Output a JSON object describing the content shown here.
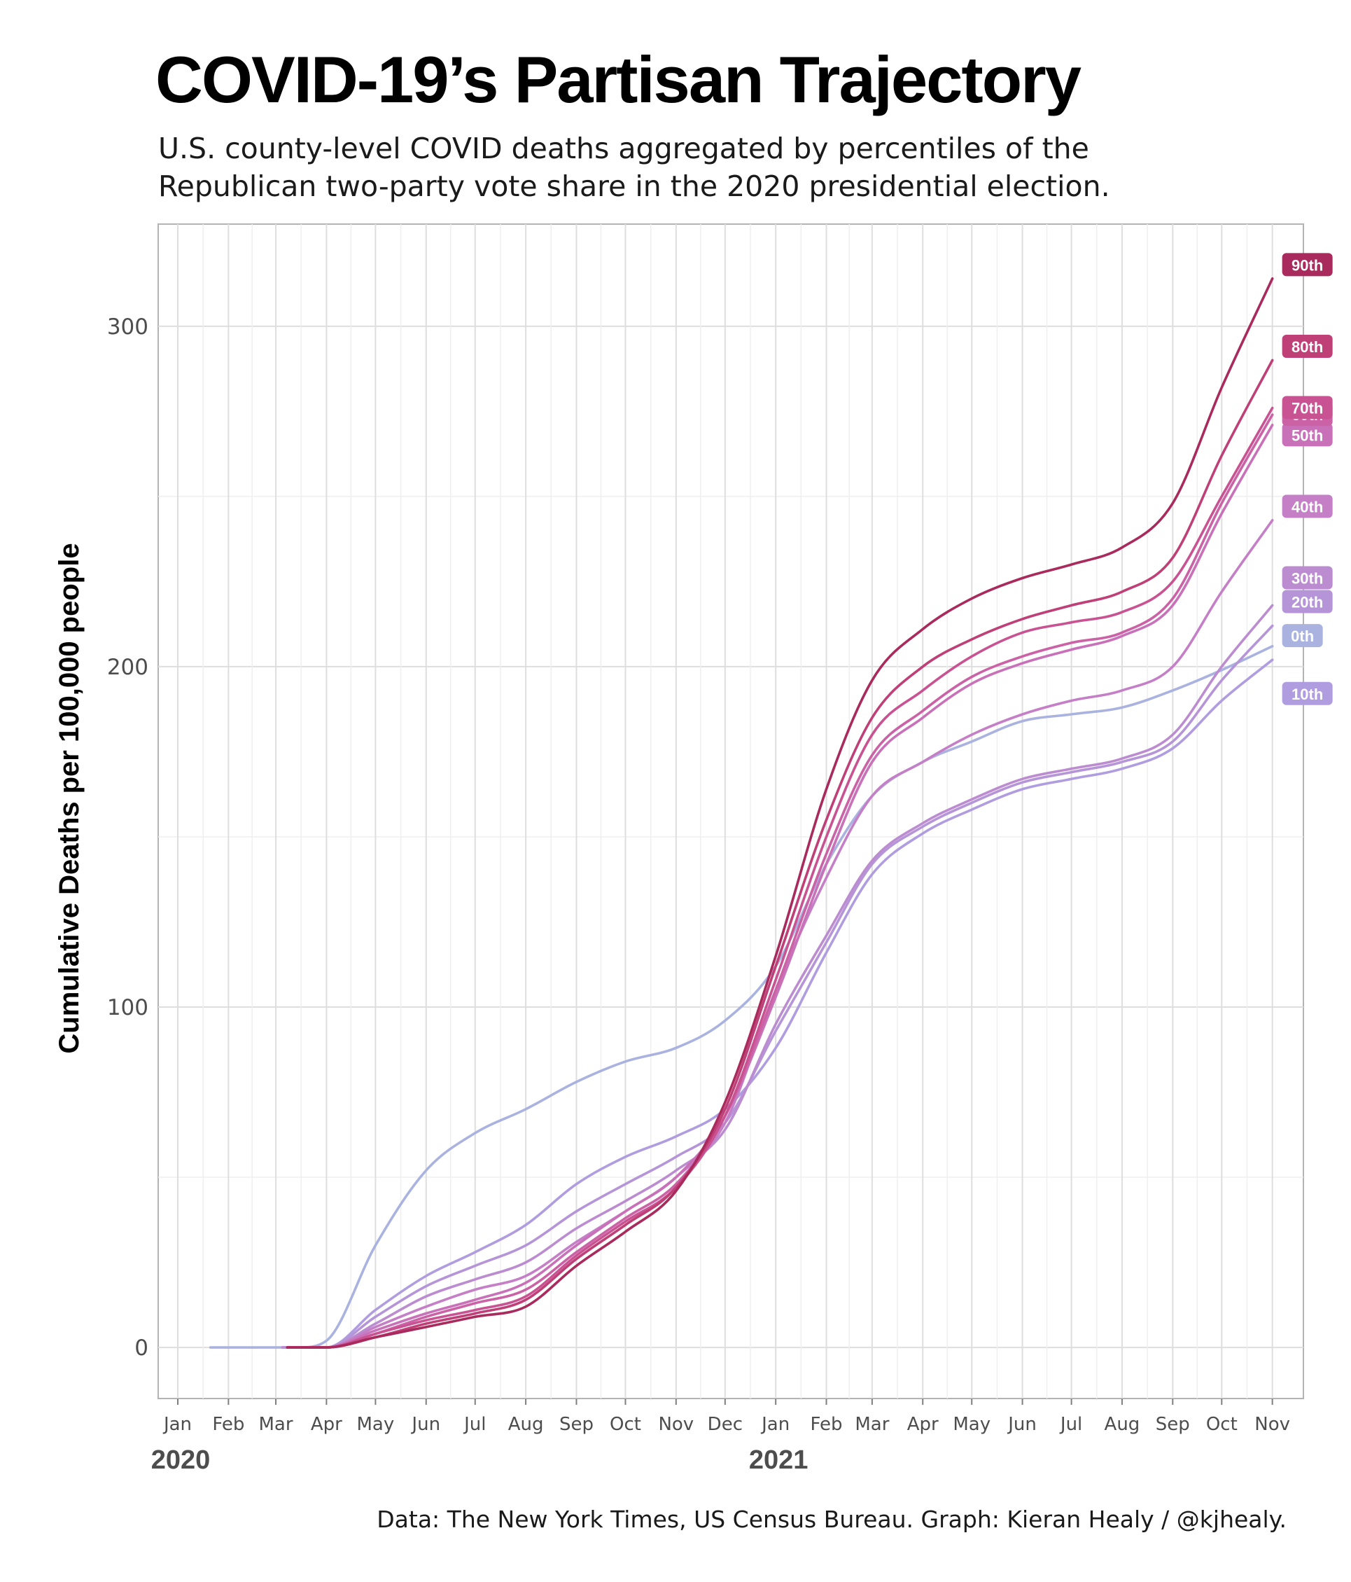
{
  "title": "COVID-19’s Partisan Trajectory",
  "subtitle": "U.S. county-level COVID deaths aggregated by percentiles of the Republican two-party vote share in the 2020 presidential election.",
  "caption": "Data: The New York Times, US Census Bureau. Graph: Kieran Healy / @kjhealy.",
  "chart_data": {
    "type": "line",
    "ylabel": "Cumulative Deaths per 100,000 people",
    "xlabel": "",
    "ylim": [
      -15,
      330
    ],
    "xlim": [
      "2019-12-20",
      "2021-11-20"
    ],
    "y_ticks": [
      0,
      100,
      200,
      300
    ],
    "x_ticks": [
      {
        "date": "2020-01-01",
        "label": "Jan"
      },
      {
        "date": "2020-02-01",
        "label": "Feb"
      },
      {
        "date": "2020-03-01",
        "label": "Mar"
      },
      {
        "date": "2020-04-01",
        "label": "Apr"
      },
      {
        "date": "2020-05-01",
        "label": "May"
      },
      {
        "date": "2020-06-01",
        "label": "Jun"
      },
      {
        "date": "2020-07-01",
        "label": "Jul"
      },
      {
        "date": "2020-08-01",
        "label": "Aug"
      },
      {
        "date": "2020-09-01",
        "label": "Sep"
      },
      {
        "date": "2020-10-01",
        "label": "Oct"
      },
      {
        "date": "2020-11-01",
        "label": "Nov"
      },
      {
        "date": "2020-12-01",
        "label": "Dec"
      },
      {
        "date": "2021-01-01",
        "label": "Jan"
      },
      {
        "date": "2021-02-01",
        "label": "Feb"
      },
      {
        "date": "2021-03-01",
        "label": "Mar"
      },
      {
        "date": "2021-04-01",
        "label": "Apr"
      },
      {
        "date": "2021-05-01",
        "label": "May"
      },
      {
        "date": "2021-06-01",
        "label": "Jun"
      },
      {
        "date": "2021-07-01",
        "label": "Jul"
      },
      {
        "date": "2021-08-01",
        "label": "Aug"
      },
      {
        "date": "2021-09-01",
        "label": "Sep"
      },
      {
        "date": "2021-10-01",
        "label": "Oct"
      },
      {
        "date": "2021-11-01",
        "label": "Nov"
      }
    ],
    "year_labels": [
      {
        "date": "2020-01-01",
        "label": "2020"
      },
      {
        "date": "2021-01-01",
        "label": "2021"
      }
    ],
    "grid": true,
    "series": [
      {
        "name": "0th",
        "color": "#aab3e0",
        "points": [
          [
            "2020-01-21",
            0
          ],
          [
            "2020-03-15",
            0
          ],
          [
            "2020-04-01",
            2
          ],
          [
            "2020-05-01",
            30
          ],
          [
            "2020-06-01",
            52
          ],
          [
            "2020-07-01",
            63
          ],
          [
            "2020-08-01",
            70
          ],
          [
            "2020-09-01",
            78
          ],
          [
            "2020-10-01",
            84
          ],
          [
            "2020-11-01",
            88
          ],
          [
            "2020-12-01",
            96
          ],
          [
            "2021-01-01",
            112
          ],
          [
            "2021-02-01",
            142
          ],
          [
            "2021-03-01",
            162
          ],
          [
            "2021-04-01",
            172
          ],
          [
            "2021-05-01",
            178
          ],
          [
            "2021-06-01",
            184
          ],
          [
            "2021-07-01",
            186
          ],
          [
            "2021-08-01",
            188
          ],
          [
            "2021-09-01",
            193
          ],
          [
            "2021-10-01",
            199
          ],
          [
            "2021-11-01",
            206
          ]
        ]
      },
      {
        "name": "10th",
        "color": "#b09de0",
        "points": [
          [
            "2020-03-05",
            0
          ],
          [
            "2020-04-01",
            0
          ],
          [
            "2020-05-01",
            11
          ],
          [
            "2020-06-01",
            21
          ],
          [
            "2020-07-01",
            28
          ],
          [
            "2020-08-01",
            36
          ],
          [
            "2020-09-01",
            48
          ],
          [
            "2020-10-01",
            56
          ],
          [
            "2020-11-01",
            62
          ],
          [
            "2020-12-01",
            70
          ],
          [
            "2021-01-01",
            88
          ],
          [
            "2021-02-01",
            116
          ],
          [
            "2021-03-01",
            139
          ],
          [
            "2021-04-01",
            151
          ],
          [
            "2021-05-01",
            158
          ],
          [
            "2021-06-01",
            164
          ],
          [
            "2021-07-01",
            167
          ],
          [
            "2021-08-01",
            170
          ],
          [
            "2021-09-01",
            176
          ],
          [
            "2021-10-01",
            190
          ],
          [
            "2021-11-01",
            202
          ]
        ]
      },
      {
        "name": "20th",
        "color": "#b595d8",
        "points": [
          [
            "2020-03-05",
            0
          ],
          [
            "2020-04-01",
            0
          ],
          [
            "2020-05-01",
            9
          ],
          [
            "2020-06-01",
            18
          ],
          [
            "2020-07-01",
            24
          ],
          [
            "2020-08-01",
            30
          ],
          [
            "2020-09-01",
            40
          ],
          [
            "2020-10-01",
            48
          ],
          [
            "2020-11-01",
            56
          ],
          [
            "2020-12-01",
            66
          ],
          [
            "2021-01-01",
            93
          ],
          [
            "2021-02-01",
            119
          ],
          [
            "2021-03-01",
            142
          ],
          [
            "2021-04-01",
            153
          ],
          [
            "2021-05-01",
            160
          ],
          [
            "2021-06-01",
            166
          ],
          [
            "2021-07-01",
            169
          ],
          [
            "2021-08-01",
            172
          ],
          [
            "2021-09-01",
            178
          ],
          [
            "2021-10-01",
            196
          ],
          [
            "2021-11-01",
            212
          ]
        ]
      },
      {
        "name": "30th",
        "color": "#bc8cd0",
        "points": [
          [
            "2020-03-05",
            0
          ],
          [
            "2020-04-01",
            0
          ],
          [
            "2020-05-01",
            7
          ],
          [
            "2020-06-01",
            15
          ],
          [
            "2020-07-01",
            20
          ],
          [
            "2020-08-01",
            25
          ],
          [
            "2020-09-01",
            35
          ],
          [
            "2020-10-01",
            43
          ],
          [
            "2020-11-01",
            52
          ],
          [
            "2020-12-01",
            64
          ],
          [
            "2021-01-01",
            95
          ],
          [
            "2021-02-01",
            121
          ],
          [
            "2021-03-01",
            143
          ],
          [
            "2021-04-01",
            154
          ],
          [
            "2021-05-01",
            161
          ],
          [
            "2021-06-01",
            167
          ],
          [
            "2021-07-01",
            170
          ],
          [
            "2021-08-01",
            173
          ],
          [
            "2021-09-01",
            180
          ],
          [
            "2021-10-01",
            200
          ],
          [
            "2021-11-01",
            218
          ]
        ]
      },
      {
        "name": "40th",
        "color": "#c47fc7",
        "points": [
          [
            "2020-03-08",
            0
          ],
          [
            "2020-04-01",
            0
          ],
          [
            "2020-05-01",
            6
          ],
          [
            "2020-06-01",
            12
          ],
          [
            "2020-07-01",
            17
          ],
          [
            "2020-08-01",
            21
          ],
          [
            "2020-09-01",
            31
          ],
          [
            "2020-10-01",
            40
          ],
          [
            "2020-11-01",
            50
          ],
          [
            "2020-12-01",
            66
          ],
          [
            "2021-01-01",
            105
          ],
          [
            "2021-02-01",
            138
          ],
          [
            "2021-03-01",
            162
          ],
          [
            "2021-04-01",
            172
          ],
          [
            "2021-05-01",
            180
          ],
          [
            "2021-06-01",
            186
          ],
          [
            "2021-07-01",
            190
          ],
          [
            "2021-08-01",
            193
          ],
          [
            "2021-09-01",
            200
          ],
          [
            "2021-10-01",
            222
          ],
          [
            "2021-11-01",
            243
          ]
        ]
      },
      {
        "name": "50th",
        "color": "#c971b8",
        "points": [
          [
            "2020-03-08",
            0
          ],
          [
            "2020-04-01",
            0
          ],
          [
            "2020-05-01",
            5
          ],
          [
            "2020-06-01",
            10
          ],
          [
            "2020-07-01",
            14
          ],
          [
            "2020-08-01",
            19
          ],
          [
            "2020-09-01",
            30
          ],
          [
            "2020-10-01",
            40
          ],
          [
            "2020-11-01",
            50
          ],
          [
            "2020-12-01",
            68
          ],
          [
            "2021-01-01",
            103
          ],
          [
            "2021-02-01",
            142
          ],
          [
            "2021-03-01",
            172
          ],
          [
            "2021-04-01",
            185
          ],
          [
            "2021-05-01",
            195
          ],
          [
            "2021-06-01",
            201
          ],
          [
            "2021-07-01",
            205
          ],
          [
            "2021-08-01",
            209
          ],
          [
            "2021-09-01",
            218
          ],
          [
            "2021-10-01",
            245
          ],
          [
            "2021-11-01",
            271
          ]
        ]
      },
      {
        "name": "60th",
        "color": "#cb62a6",
        "points": [
          [
            "2020-03-08",
            0
          ],
          [
            "2020-04-01",
            0
          ],
          [
            "2020-05-01",
            4
          ],
          [
            "2020-06-01",
            9
          ],
          [
            "2020-07-01",
            13
          ],
          [
            "2020-08-01",
            17
          ],
          [
            "2020-09-01",
            28
          ],
          [
            "2020-10-01",
            38
          ],
          [
            "2020-11-01",
            48
          ],
          [
            "2020-12-01",
            68
          ],
          [
            "2021-01-01",
            105
          ],
          [
            "2021-02-01",
            145
          ],
          [
            "2021-03-01",
            174
          ],
          [
            "2021-04-01",
            187
          ],
          [
            "2021-05-01",
            197
          ],
          [
            "2021-06-01",
            203
          ],
          [
            "2021-07-01",
            207
          ],
          [
            "2021-08-01",
            210
          ],
          [
            "2021-09-01",
            220
          ],
          [
            "2021-10-01",
            248
          ],
          [
            "2021-11-01",
            274
          ]
        ]
      },
      {
        "name": "70th",
        "color": "#c95392",
        "points": [
          [
            "2020-03-08",
            0
          ],
          [
            "2020-04-01",
            0
          ],
          [
            "2020-05-01",
            4
          ],
          [
            "2020-06-01",
            8
          ],
          [
            "2020-07-01",
            11
          ],
          [
            "2020-08-01",
            15
          ],
          [
            "2020-09-01",
            27
          ],
          [
            "2020-10-01",
            37
          ],
          [
            "2020-11-01",
            47
          ],
          [
            "2020-12-01",
            68
          ],
          [
            "2021-01-01",
            108
          ],
          [
            "2021-02-01",
            150
          ],
          [
            "2021-03-01",
            180
          ],
          [
            "2021-04-01",
            193
          ],
          [
            "2021-05-01",
            203
          ],
          [
            "2021-06-01",
            210
          ],
          [
            "2021-07-01",
            213
          ],
          [
            "2021-08-01",
            216
          ],
          [
            "2021-09-01",
            225
          ],
          [
            "2021-10-01",
            250
          ],
          [
            "2021-11-01",
            276
          ]
        ]
      },
      {
        "name": "80th",
        "color": "#bf3f77",
        "points": [
          [
            "2020-03-08",
            0
          ],
          [
            "2020-04-01",
            0
          ],
          [
            "2020-05-01",
            3
          ],
          [
            "2020-06-01",
            7
          ],
          [
            "2020-07-01",
            10
          ],
          [
            "2020-08-01",
            14
          ],
          [
            "2020-09-01",
            26
          ],
          [
            "2020-10-01",
            36
          ],
          [
            "2020-11-01",
            47
          ],
          [
            "2020-12-01",
            70
          ],
          [
            "2021-01-01",
            112
          ],
          [
            "2021-02-01",
            155
          ],
          [
            "2021-03-01",
            185
          ],
          [
            "2021-04-01",
            200
          ],
          [
            "2021-05-01",
            208
          ],
          [
            "2021-06-01",
            214
          ],
          [
            "2021-07-01",
            218
          ],
          [
            "2021-08-01",
            222
          ],
          [
            "2021-09-01",
            232
          ],
          [
            "2021-10-01",
            262
          ],
          [
            "2021-11-01",
            290
          ]
        ]
      },
      {
        "name": "90th",
        "color": "#a92a5c",
        "points": [
          [
            "2020-03-08",
            0
          ],
          [
            "2020-04-01",
            0
          ],
          [
            "2020-05-01",
            3
          ],
          [
            "2020-06-01",
            6
          ],
          [
            "2020-07-01",
            9
          ],
          [
            "2020-08-01",
            12
          ],
          [
            "2020-09-01",
            24
          ],
          [
            "2020-10-01",
            34
          ],
          [
            "2020-11-01",
            46
          ],
          [
            "2020-12-01",
            72
          ],
          [
            "2021-01-01",
            115
          ],
          [
            "2021-02-01",
            164
          ],
          [
            "2021-03-01",
            196
          ],
          [
            "2021-04-01",
            211
          ],
          [
            "2021-05-01",
            220
          ],
          [
            "2021-06-01",
            226
          ],
          [
            "2021-07-01",
            230
          ],
          [
            "2021-08-01",
            235
          ],
          [
            "2021-09-01",
            248
          ],
          [
            "2021-10-01",
            282
          ],
          [
            "2021-11-01",
            314
          ]
        ]
      }
    ]
  }
}
